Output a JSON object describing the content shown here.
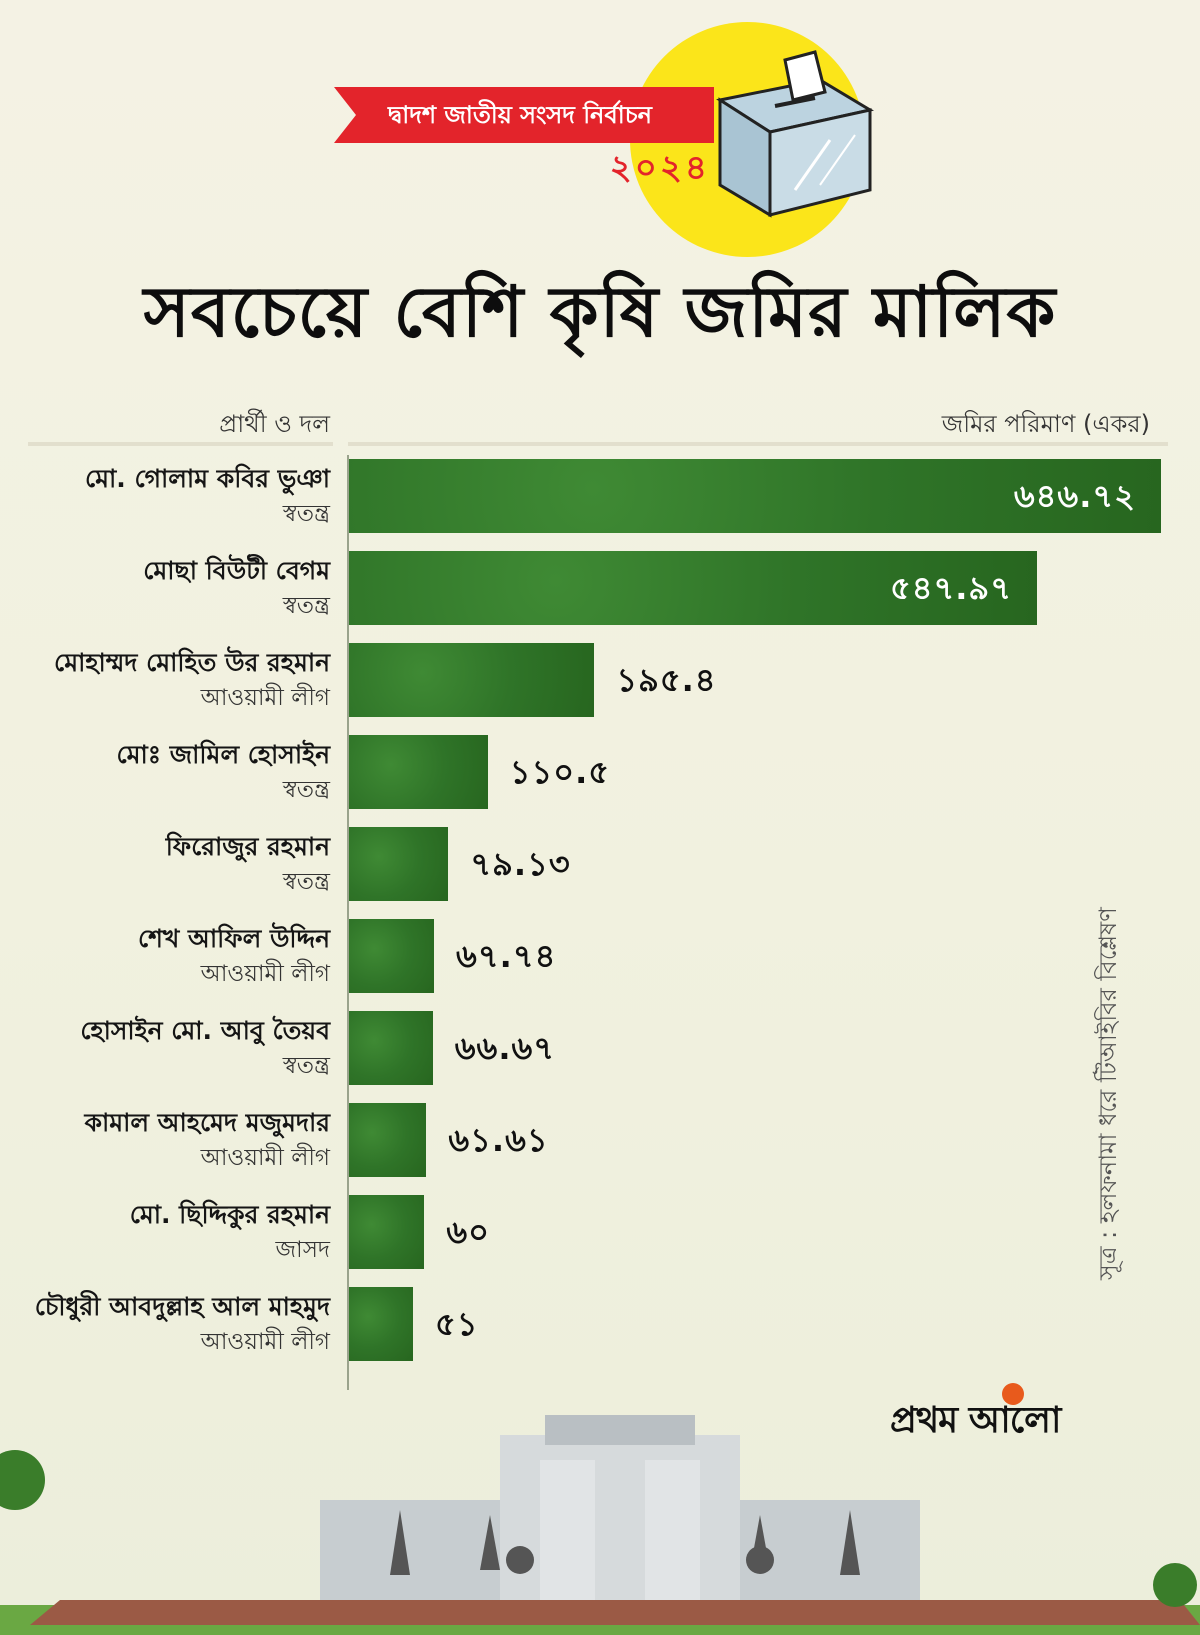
{
  "header": {
    "banner": "দ্বাদশ জাতীয় সংসদ নির্বাচন",
    "year": "২০২৪",
    "title": "সবচেয়ে বেশি কৃষি জমির মালিক"
  },
  "columns": {
    "left": "প্রার্থী ও দল",
    "right": "জমির পরিমাণ (একর)"
  },
  "source": "সূত্র : হলফনামা ধরে টিআইবির বিশ্লেষণ",
  "logo": "প্রথম আলো",
  "colors": {
    "bar": "#2f7428",
    "accent_red": "#e3242b",
    "sun_yellow": "#fbe51a"
  },
  "chart_data": {
    "type": "bar",
    "orientation": "horizontal",
    "title": "সবচেয়ে বেশি কৃষি জমির মালিক",
    "ylabel": "জমির পরিমাণ (একর)",
    "xlabel": "প্রার্থী ও দল",
    "xlim": [
      0,
      646.72
    ],
    "grid": false,
    "categories": [
      {
        "name": "মো. গোলাম কবির ভুঞা",
        "party": "স্বতন্ত্র",
        "value": 646.72,
        "label": "৬৪৬.৭২"
      },
      {
        "name": "মোছা বিউটী বেগম",
        "party": "স্বতন্ত্র",
        "value": 547.97,
        "label": "৫৪৭.৯৭"
      },
      {
        "name": "মোহাম্মদ মোহিত উর রহমান",
        "party": "আওয়ামী লীগ",
        "value": 195.4,
        "label": "১৯৫.৪"
      },
      {
        "name": "মোঃ জামিল হোসাইন",
        "party": "স্বতন্ত্র",
        "value": 110.5,
        "label": "১১০.৫"
      },
      {
        "name": "ফিরোজুর রহমান",
        "party": "স্বতন্ত্র",
        "value": 79.13,
        "label": "৭৯.১৩"
      },
      {
        "name": "শেখ আফিল উদ্দিন",
        "party": "আওয়ামী লীগ",
        "value": 67.74,
        "label": "৬৭.৭৪"
      },
      {
        "name": "হোসাইন মো. আবু তৈয়ব",
        "party": "স্বতন্ত্র",
        "value": 66.67,
        "label": "৬৬.৬৭"
      },
      {
        "name": "কামাল আহমেদ মজুমদার",
        "party": "আওয়ামী লীগ",
        "value": 61.61,
        "label": "৬১.৬১"
      },
      {
        "name": "মো. ছিদ্দিকুর রহমান",
        "party": "জাসদ",
        "value": 60,
        "label": "৬০"
      },
      {
        "name": "চৌধুরী আবদুল্লাহ আল মাহমুদ",
        "party": "আওয়ামী লীগ",
        "value": 51,
        "label": "৫১"
      }
    ]
  }
}
